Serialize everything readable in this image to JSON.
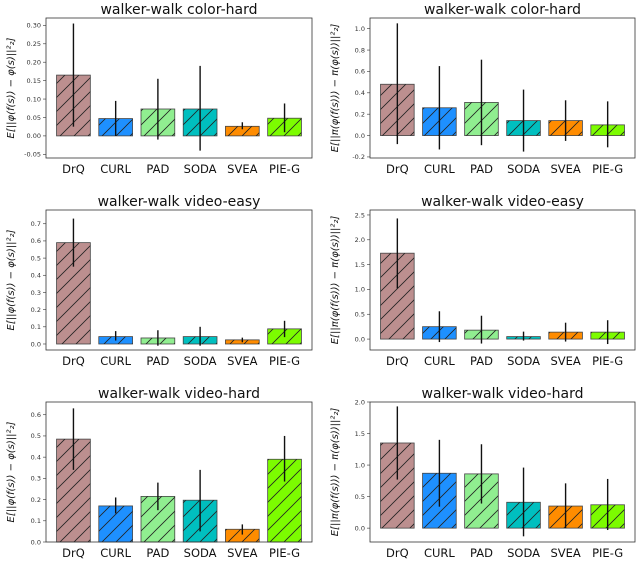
{
  "chart_data": [
    {
      "type": "bar",
      "title": "walker-walk color-hard",
      "ylabel": "E[||φ(f(s)) − φ(s)||²₂]",
      "categories": [
        "DrQ",
        "CURL",
        "PAD",
        "SODA",
        "SVEA",
        "PIE-G"
      ],
      "values": [
        0.165,
        0.047,
        0.073,
        0.073,
        0.026,
        0.048
      ],
      "err_low": [
        0.025,
        0.0,
        -0.01,
        -0.04,
        0.018,
        0.01
      ],
      "err_high": [
        0.305,
        0.095,
        0.155,
        0.19,
        0.037,
        0.088
      ],
      "ylim": [
        -0.06,
        0.32
      ],
      "yticks": [
        -0.05,
        0.0,
        0.05,
        0.1,
        0.15,
        0.2,
        0.25,
        0.3
      ],
      "ytick_labels": [
        "-0.05",
        "0.00",
        "0.05",
        "0.10",
        "0.15",
        "0.20",
        "0.25",
        "0.30"
      ]
    },
    {
      "type": "bar",
      "title": "walker-walk color-hard",
      "ylabel": "E[||π(φ(f(s))) − π(φ(s))||²₂]",
      "categories": [
        "DrQ",
        "CURL",
        "PAD",
        "SODA",
        "SVEA",
        "PIE-G"
      ],
      "values": [
        0.48,
        0.26,
        0.31,
        0.14,
        0.14,
        0.1
      ],
      "err_low": [
        -0.08,
        -0.13,
        -0.09,
        -0.15,
        -0.05,
        -0.11
      ],
      "err_high": [
        1.05,
        0.65,
        0.71,
        0.43,
        0.33,
        0.32
      ],
      "ylim": [
        -0.21,
        1.1
      ],
      "yticks": [
        -0.2,
        0.0,
        0.2,
        0.4,
        0.6,
        0.8,
        1.0
      ],
      "ytick_labels": [
        "-0.2",
        "0.0",
        "0.2",
        "0.4",
        "0.6",
        "0.8",
        "1.0"
      ]
    },
    {
      "type": "bar",
      "title": "walker-walk video-easy",
      "ylabel": "E[||φ(f(s)) − φ(s)||²₂]",
      "categories": [
        "DrQ",
        "CURL",
        "PAD",
        "SODA",
        "SVEA",
        "PIE-G"
      ],
      "values": [
        0.59,
        0.043,
        0.035,
        0.043,
        0.024,
        0.088
      ],
      "err_low": [
        0.45,
        0.02,
        -0.01,
        -0.01,
        0.01,
        0.04
      ],
      "err_high": [
        0.73,
        0.075,
        0.08,
        0.1,
        0.037,
        0.135
      ],
      "ylim": [
        -0.035,
        0.78
      ],
      "yticks": [
        0.0,
        0.1,
        0.2,
        0.3,
        0.4,
        0.5,
        0.6,
        0.7
      ],
      "ytick_labels": [
        "0.0",
        "0.1",
        "0.2",
        "0.3",
        "0.4",
        "0.5",
        "0.6",
        "0.7"
      ]
    },
    {
      "type": "bar",
      "title": "walker-walk video-easy",
      "ylabel": "E[||π(φ(f(s))) − π(φ(s))||²₂]",
      "categories": [
        "DrQ",
        "CURL",
        "PAD",
        "SODA",
        "SVEA",
        "PIE-G"
      ],
      "values": [
        1.73,
        0.25,
        0.18,
        0.05,
        0.14,
        0.14
      ],
      "err_low": [
        1.02,
        -0.06,
        -0.09,
        -0.03,
        -0.05,
        -0.1
      ],
      "err_high": [
        2.43,
        0.56,
        0.47,
        0.15,
        0.33,
        0.38
      ],
      "ylim": [
        -0.22,
        2.6
      ],
      "yticks": [
        0.0,
        0.5,
        1.0,
        1.5,
        2.0,
        2.5
      ],
      "ytick_labels": [
        "0.0",
        "0.5",
        "1.0",
        "1.5",
        "2.0",
        "2.5"
      ]
    },
    {
      "type": "bar",
      "title": "walker-walk video-hard",
      "ylabel": "E[||φ(f(s)) − φ(s)||²₂]",
      "categories": [
        "DrQ",
        "CURL",
        "PAD",
        "SODA",
        "SVEA",
        "PIE-G"
      ],
      "values": [
        0.485,
        0.17,
        0.215,
        0.197,
        0.06,
        0.39
      ],
      "err_low": [
        0.34,
        0.135,
        0.15,
        0.05,
        0.035,
        0.285
      ],
      "err_high": [
        0.63,
        0.21,
        0.28,
        0.34,
        0.083,
        0.5
      ],
      "ylim": [
        0.0,
        0.66
      ],
      "yticks": [
        0.0,
        0.1,
        0.2,
        0.3,
        0.4,
        0.5,
        0.6
      ],
      "ytick_labels": [
        "0.0",
        "0.1",
        "0.2",
        "0.3",
        "0.4",
        "0.5",
        "0.6"
      ]
    },
    {
      "type": "bar",
      "title": "walker-walk video-hard",
      "ylabel": "E[||π(φ(f(s))) − π(φ(s))||²₂]",
      "categories": [
        "DrQ",
        "CURL",
        "PAD",
        "SODA",
        "SVEA",
        "PIE-G"
      ],
      "values": [
        1.35,
        0.87,
        0.86,
        0.41,
        0.35,
        0.37
      ],
      "err_low": [
        0.77,
        0.34,
        0.39,
        -0.13,
        0.0,
        -0.03
      ],
      "err_high": [
        1.93,
        1.4,
        1.33,
        0.96,
        0.71,
        0.78
      ],
      "ylim": [
        -0.22,
        2.0
      ],
      "yticks": [
        0.0,
        0.5,
        1.0,
        1.5,
        2.0
      ],
      "ytick_labels": [
        "0.0",
        "0.5",
        "1.0",
        "1.5",
        "2.0"
      ]
    }
  ],
  "colors": {
    "DrQ": "#bc8f8f",
    "CURL": "#1e90ff",
    "PAD": "#90ee90",
    "SODA": "#00bfbf",
    "SVEA": "#ff8c00",
    "PIE-G": "#7cfc00"
  }
}
